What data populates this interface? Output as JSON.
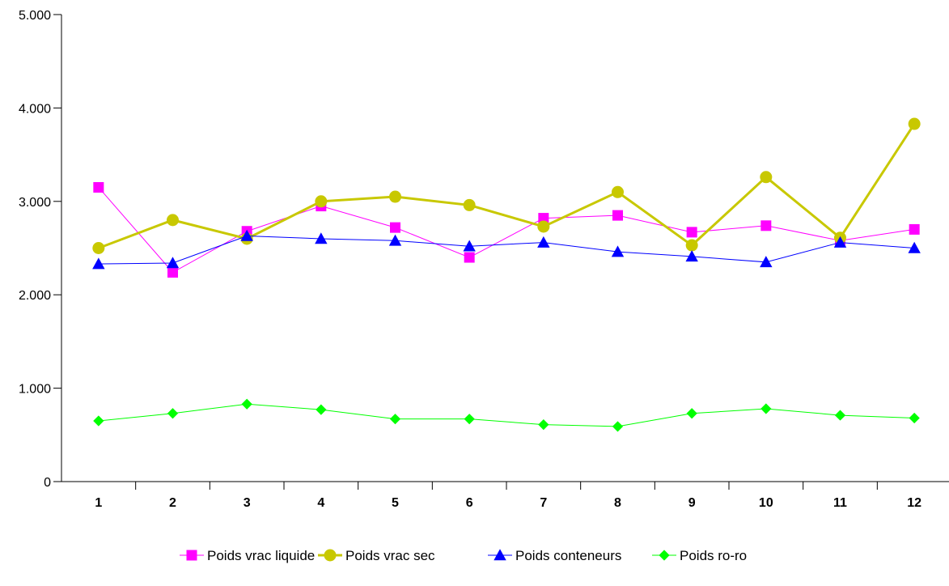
{
  "chart_data": {
    "type": "line",
    "categories": [
      "1",
      "2",
      "3",
      "4",
      "5",
      "6",
      "7",
      "8",
      "9",
      "10",
      "11",
      "12"
    ],
    "y_tick_labels": [
      "0",
      "1.000",
      "2.000",
      "3.000",
      "4.000",
      "5.000"
    ],
    "y_tick_values": [
      0,
      1000,
      2000,
      3000,
      4000,
      5000
    ],
    "ylim": [
      0,
      5000
    ],
    "grid": false,
    "legend_position": "bottom",
    "series": [
      {
        "name": "Poids vrac liquide",
        "color": "#ff00ff",
        "marker": "square",
        "values": [
          3150,
          2240,
          2680,
          2950,
          2720,
          2400,
          2820,
          2850,
          2670,
          2740,
          2580,
          2700
        ]
      },
      {
        "name": "Poids vrac sec",
        "color": "#c8c800",
        "marker": "circle",
        "values": [
          2500,
          2800,
          2600,
          3000,
          3050,
          2960,
          2730,
          3100,
          2530,
          3260,
          2610,
          3830
        ]
      },
      {
        "name": "Poids conteneurs",
        "color": "#0000ff",
        "marker": "triangle",
        "values": [
          2330,
          2340,
          2630,
          2600,
          2580,
          2520,
          2560,
          2460,
          2410,
          2350,
          2560,
          2500
        ]
      },
      {
        "name": "Poids ro-ro",
        "color": "#00ff00",
        "marker": "diamond",
        "values": [
          650,
          730,
          830,
          770,
          670,
          670,
          610,
          590,
          730,
          780,
          710,
          680
        ]
      }
    ]
  }
}
